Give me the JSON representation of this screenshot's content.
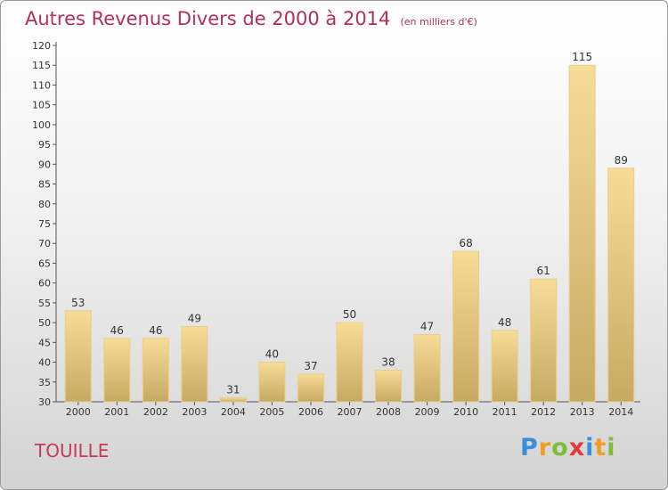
{
  "header": {
    "title": "Autres Revenus Divers de 2000 à 2014",
    "subtitle": "(en milliers d'€)"
  },
  "footer": {
    "place_name": "TOUILLE",
    "logo_text": "Proxiti",
    "logo_letters": [
      {
        "ch": "P",
        "color": "#3b8fd6"
      },
      {
        "ch": "r",
        "color": "#f0a020"
      },
      {
        "ch": "o",
        "color": "#7cbf3b"
      },
      {
        "ch": "x",
        "color": "#e03a3a"
      },
      {
        "ch": "i",
        "color": "#3b8fd6"
      },
      {
        "ch": "t",
        "color": "#f0a020"
      },
      {
        "ch": "i",
        "color": "#7cbf3b"
      }
    ]
  },
  "colors": {
    "title": "#b1305a",
    "bar_light": "#f7dc97",
    "bar_dark": "#c9ad66",
    "axis": "#555555"
  },
  "chart_data": {
    "type": "bar",
    "title": "Autres Revenus Divers de 2000 à 2014",
    "subtitle": "(en milliers d'€)",
    "categories": [
      "2000",
      "2001",
      "2002",
      "2003",
      "2004",
      "2005",
      "2006",
      "2007",
      "2008",
      "2009",
      "2010",
      "2011",
      "2012",
      "2013",
      "2014"
    ],
    "values": [
      53,
      46,
      46,
      49,
      31,
      40,
      37,
      50,
      38,
      47,
      68,
      48,
      61,
      115,
      89
    ],
    "ylim": [
      30,
      120
    ],
    "yticks": [
      30,
      35,
      40,
      45,
      50,
      55,
      60,
      65,
      70,
      75,
      80,
      85,
      90,
      95,
      100,
      105,
      110,
      115,
      120
    ],
    "grid": false,
    "data_labels": true
  }
}
